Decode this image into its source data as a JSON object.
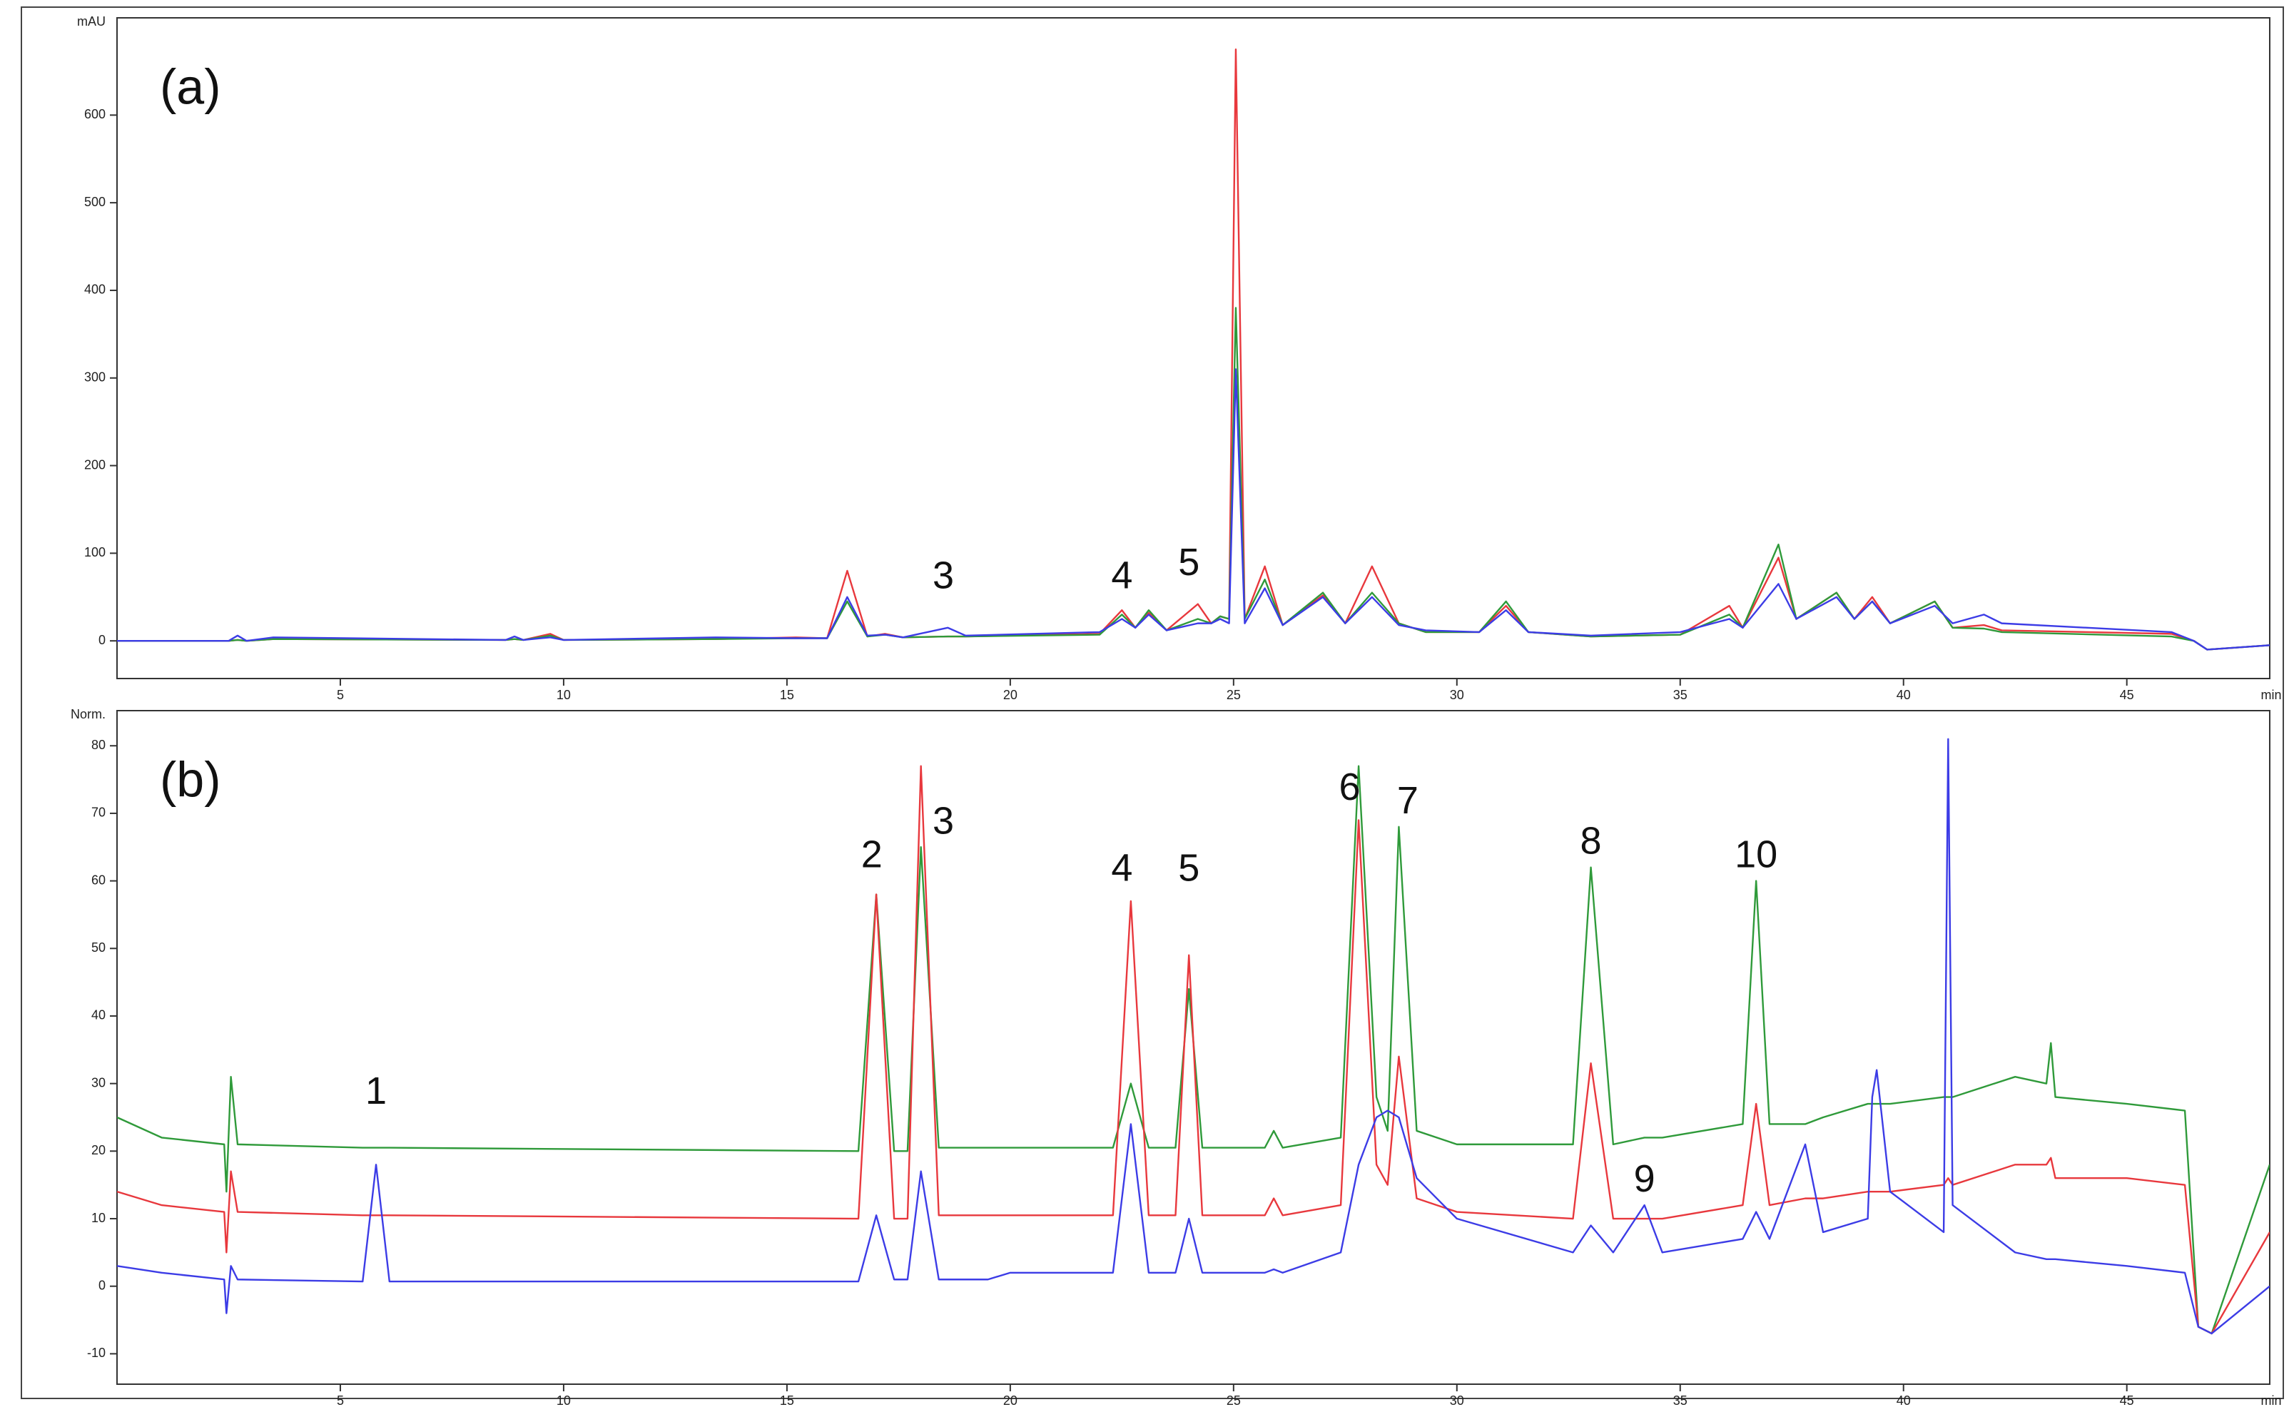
{
  "chart_data": [
    {
      "type": "line",
      "panel_label": "(a)",
      "y_label": "mAU",
      "x_label": "min",
      "xlim": [
        0,
        48.2
      ],
      "xticks": [
        5,
        10,
        15,
        20,
        25,
        30,
        35,
        40,
        45
      ],
      "ylim": [
        -43,
        711
      ],
      "yticks": [
        0,
        100,
        200,
        300,
        400,
        500,
        600
      ],
      "x": [
        0,
        2.5,
        2.7,
        2.9,
        3.5,
        8.7,
        8.9,
        9.1,
        9.7,
        10,
        13.4,
        15.2,
        15.9,
        16.35,
        16.8,
        17.2,
        17.6,
        18.6,
        19,
        22,
        22.5,
        22.8,
        23.1,
        23.5,
        24.2,
        24.5,
        24.7,
        24.9,
        25.05,
        25.25,
        25.7,
        26.1,
        27.0,
        27.5,
        28.1,
        28.7,
        29.3,
        30.5,
        31.1,
        31.6,
        33,
        35,
        36.1,
        36.4,
        37.2,
        37.6,
        38.5,
        38.9,
        39.3,
        39.7,
        40.7,
        41.1,
        41.8,
        42.2,
        46,
        46.5,
        46.8,
        48.2
      ],
      "series": [
        {
          "color": "#e8383d",
          "values": [
            0,
            0,
            1,
            0,
            2,
            1,
            2,
            1,
            8,
            1,
            2,
            4,
            3,
            80,
            5,
            8,
            4,
            5,
            5,
            8,
            35,
            15,
            32,
            12,
            42,
            20,
            28,
            25,
            675,
            25,
            85,
            18,
            52,
            20,
            85,
            20,
            10,
            10,
            40,
            10,
            5,
            7,
            40,
            15,
            95,
            25,
            55,
            25,
            50,
            20,
            45,
            15,
            18,
            12,
            8,
            0,
            -10,
            -5
          ]
        },
        {
          "color": "#2f9a3a",
          "values": [
            0,
            0,
            1,
            0,
            2,
            1,
            2,
            1,
            6,
            1,
            2,
            3,
            3,
            45,
            5,
            7,
            4,
            5,
            5,
            7,
            30,
            15,
            35,
            12,
            25,
            20,
            28,
            25,
            380,
            25,
            70,
            18,
            55,
            20,
            55,
            20,
            10,
            10,
            45,
            10,
            5,
            7,
            30,
            15,
            110,
            25,
            55,
            25,
            45,
            20,
            45,
            15,
            14,
            10,
            5,
            0,
            -10,
            -5
          ]
        },
        {
          "color": "#3c3ce6",
          "values": [
            0,
            0,
            6,
            0,
            4,
            1,
            5,
            1,
            4,
            1,
            4,
            3,
            3,
            50,
            6,
            7,
            4,
            15,
            6,
            10,
            25,
            15,
            30,
            12,
            20,
            20,
            25,
            20,
            310,
            20,
            60,
            18,
            50,
            20,
            50,
            18,
            12,
            10,
            35,
            10,
            6,
            10,
            25,
            15,
            65,
            25,
            50,
            25,
            45,
            20,
            40,
            20,
            30,
            20,
            10,
            0,
            -10,
            -5
          ]
        }
      ],
      "annotations": [
        {
          "text": "3",
          "x": 18.5,
          "y": 60
        },
        {
          "text": "4",
          "x": 22.5,
          "y": 60
        },
        {
          "text": "5",
          "x": 24.0,
          "y": 75
        }
      ]
    },
    {
      "type": "line",
      "panel_label": "(b)",
      "y_label": "Norm.",
      "x_label": "min",
      "xlim": [
        0,
        48.2
      ],
      "xticks": [
        5,
        10,
        15,
        20,
        25,
        30,
        35,
        40,
        45
      ],
      "ylim": [
        -14.5,
        85.2
      ],
      "yticks": [
        -10,
        0,
        10,
        20,
        30,
        40,
        50,
        60,
        70,
        80
      ],
      "x": [
        0,
        1,
        2.4,
        2.45,
        2.55,
        2.7,
        5.5,
        5.8,
        6.1,
        16.6,
        17.0,
        17.4,
        17.7,
        18.0,
        18.4,
        19.5,
        20,
        22.3,
        22.7,
        23.1,
        23.7,
        24.0,
        24.3,
        25.7,
        25.9,
        26.1,
        27.4,
        27.8,
        28.2,
        28.45,
        28.7,
        29.1,
        30,
        32.6,
        33.0,
        33.5,
        34.2,
        34.6,
        36.4,
        36.7,
        37.0,
        37.8,
        38.2,
        39.2,
        39.3,
        39.4,
        39.7,
        40.9,
        41.0,
        41.1,
        42.5,
        43.2,
        43.3,
        43.4,
        45,
        46.3,
        46.6,
        46.9,
        48.2
      ],
      "series": [
        {
          "color": "#2f9a3a",
          "values": [
            25,
            22,
            21,
            14,
            31,
            21,
            20.5,
            20.5,
            20.5,
            20,
            58,
            20,
            20,
            65,
            20.5,
            20.5,
            20.5,
            20.5,
            30,
            20.5,
            20.5,
            44,
            20.5,
            20.5,
            23,
            20.5,
            22,
            77,
            28,
            23,
            68,
            23,
            21,
            21,
            62,
            21,
            22,
            22,
            24,
            60,
            24,
            24,
            25,
            27,
            27,
            27,
            27,
            28,
            28,
            28,
            31,
            30,
            36,
            28,
            27,
            26,
            -6,
            -7,
            18
          ]
        },
        {
          "color": "#e8383d",
          "values": [
            14,
            12,
            11,
            5,
            17,
            11,
            10.5,
            10.5,
            10.5,
            10,
            58,
            10,
            10,
            77,
            10.5,
            10.5,
            10.5,
            10.5,
            57,
            10.5,
            10.5,
            49,
            10.5,
            10.5,
            13,
            10.5,
            12,
            69,
            18,
            15,
            34,
            13,
            11,
            10,
            33,
            10,
            10,
            10,
            12,
            27,
            12,
            13,
            13,
            14,
            14,
            14,
            14,
            15,
            16,
            15,
            18,
            18,
            19,
            16,
            16,
            15,
            -6,
            -7,
            8
          ]
        },
        {
          "color": "#3c3ce6",
          "values": [
            3,
            2,
            1,
            -4,
            3,
            1,
            0.7,
            18,
            0.7,
            0.7,
            10.5,
            1,
            1,
            17,
            1,
            1,
            2,
            2,
            24,
            2,
            2,
            10,
            2,
            2,
            2.5,
            2,
            5,
            18,
            25,
            26,
            25,
            16,
            10,
            5,
            9,
            5,
            12,
            5,
            7,
            11,
            7,
            21,
            8,
            10,
            28,
            32,
            14,
            8,
            81,
            12,
            5,
            4,
            4,
            4,
            3,
            2,
            -6,
            -7,
            0
          ]
        }
      ],
      "annotations": [
        {
          "text": "1",
          "x": 5.8,
          "y": 27
        },
        {
          "text": "2",
          "x": 16.9,
          "y": 62
        },
        {
          "text": "3",
          "x": 18.5,
          "y": 67
        },
        {
          "text": "4",
          "x": 22.5,
          "y": 60
        },
        {
          "text": "5",
          "x": 24.0,
          "y": 60
        },
        {
          "text": "6",
          "x": 27.6,
          "y": 72
        },
        {
          "text": "7",
          "x": 28.9,
          "y": 70
        },
        {
          "text": "8",
          "x": 33.0,
          "y": 64
        },
        {
          "text": "9",
          "x": 34.2,
          "y": 14
        },
        {
          "text": "10",
          "x": 36.7,
          "y": 62
        }
      ]
    }
  ]
}
